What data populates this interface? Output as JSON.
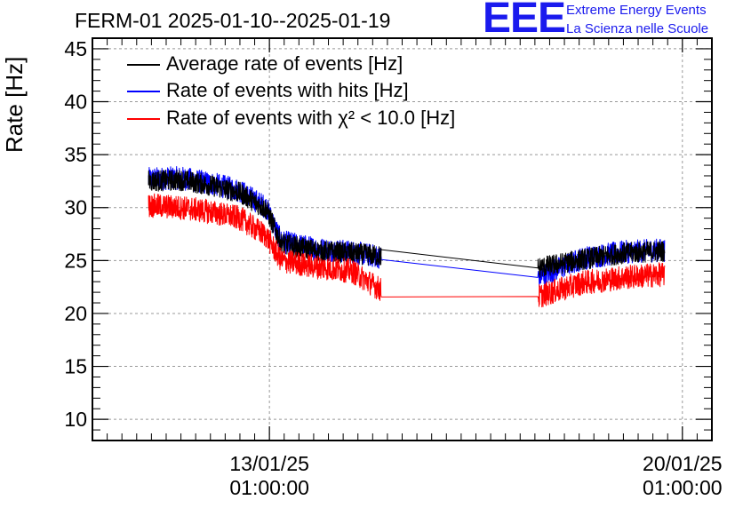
{
  "header": {
    "title": "FERM-01 2025-01-10--2025-01-19",
    "logo_text": "EEE",
    "logo_line1": "Extreme Energy Events",
    "logo_line2": "La Scienza nelle Scuole"
  },
  "chart_data": {
    "type": "line",
    "ylabel": "Rate [Hz]",
    "ylim": [
      8,
      46
    ],
    "yticks": [
      10,
      15,
      20,
      25,
      30,
      35,
      40,
      45
    ],
    "xlim_days": [
      0,
      10.5
    ],
    "x_major_ticks": [
      {
        "day": 3.0,
        "label_date": "13/01/25",
        "label_time": "01:00:00"
      },
      {
        "day": 10.0,
        "label_date": "20/01/25",
        "label_time": "01:00:00"
      }
    ],
    "grid": true,
    "legend_position": "top-left",
    "series": [
      {
        "name": "Average rate of events [Hz]",
        "color": "#000000",
        "points": [
          [
            0.95,
            32.5
          ],
          [
            1.5,
            32.6
          ],
          [
            2.0,
            32.1
          ],
          [
            2.5,
            31.4
          ],
          [
            2.95,
            29.8
          ],
          [
            3.2,
            26.6
          ],
          [
            3.8,
            25.9
          ],
          [
            4.4,
            25.7
          ],
          [
            4.9,
            25.4
          ],
          [
            7.55,
            24.3
          ],
          [
            8.3,
            25.1
          ],
          [
            9.0,
            25.7
          ],
          [
            9.7,
            25.9
          ]
        ]
      },
      {
        "name": "Rate of events with hits [Hz]",
        "color": "#0000ff",
        "points": [
          [
            0.95,
            32.7
          ],
          [
            1.5,
            32.8
          ],
          [
            2.0,
            32.3
          ],
          [
            2.5,
            31.6
          ],
          [
            2.95,
            30.0
          ],
          [
            3.2,
            26.8
          ],
          [
            3.8,
            26.1
          ],
          [
            4.4,
            25.8
          ],
          [
            4.9,
            25.3
          ],
          [
            7.55,
            23.4
          ],
          [
            8.3,
            25.2
          ],
          [
            9.0,
            25.8
          ],
          [
            9.7,
            26.0
          ]
        ]
      },
      {
        "name": "Rate of events with χ² < 10.0 [Hz]",
        "color": "#ff0000",
        "points": [
          [
            0.95,
            30.2
          ],
          [
            1.5,
            30.0
          ],
          [
            2.0,
            29.6
          ],
          [
            2.5,
            29.0
          ],
          [
            2.95,
            27.3
          ],
          [
            3.2,
            25.0
          ],
          [
            3.8,
            24.4
          ],
          [
            4.4,
            24.0
          ],
          [
            4.9,
            22.2
          ],
          [
            7.55,
            21.6
          ],
          [
            8.3,
            22.9
          ],
          [
            9.0,
            23.4
          ],
          [
            9.7,
            23.7
          ]
        ]
      }
    ]
  }
}
